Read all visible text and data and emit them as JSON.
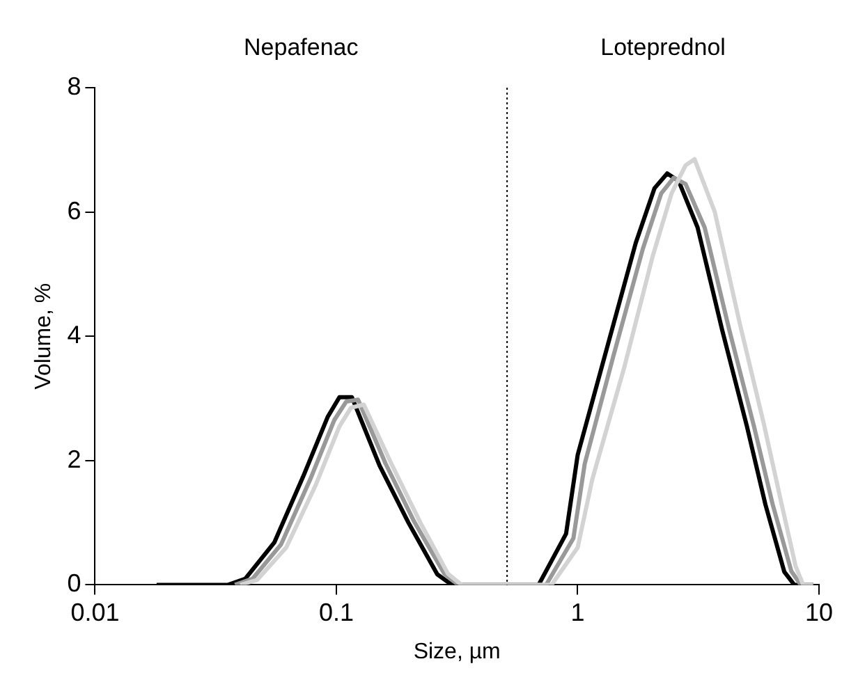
{
  "chart_data": {
    "type": "line",
    "xlabel": "Size, µm",
    "ylabel": "Volume, %",
    "log": "x",
    "grid": false,
    "legend": false,
    "marker": "none",
    "line_style": "solid",
    "xlim": [
      0.01,
      10
    ],
    "xticks": [
      0.01,
      0.1,
      1,
      10
    ],
    "ylim": [
      0,
      8
    ],
    "yticks": [
      0,
      2,
      4,
      6,
      8
    ],
    "annotations": [
      "Nepafenac",
      "Loteprednol"
    ],
    "ref_lines": [
      {
        "axis": "x",
        "value": 0.51,
        "color": "#000000",
        "line_style": "dotted"
      }
    ],
    "series": [
      {
        "color": "#d3d3d3",
        "x": [
          0.04,
          0.047,
          0.062,
          0.082,
          0.103,
          0.115,
          0.13,
          0.169,
          0.223,
          0.29,
          0.33,
          0.78,
          1.0,
          1.15,
          1.56,
          2.05,
          2.45,
          2.8,
          3.05,
          3.7,
          4.7,
          5.9,
          7.0,
          8.0,
          8.6,
          9.46
        ],
        "values": [
          0,
          0.08,
          0.6,
          1.6,
          2.55,
          2.85,
          2.9,
          1.95,
          1.0,
          0.18,
          0,
          0,
          0.6,
          1.7,
          3.5,
          5.3,
          6.3,
          6.75,
          6.85,
          6.0,
          4.2,
          2.6,
          1.3,
          0.3,
          0,
          0
        ]
      },
      {
        "color": "#999999",
        "x": [
          0.038,
          0.045,
          0.059,
          0.078,
          0.098,
          0.11,
          0.123,
          0.16,
          0.21,
          0.28,
          0.32,
          0.74,
          0.96,
          1.07,
          1.41,
          1.86,
          2.22,
          2.5,
          2.8,
          3.36,
          4.25,
          5.37,
          6.42,
          7.68,
          8.4,
          9.46
        ],
        "values": [
          0,
          0.1,
          0.65,
          1.7,
          2.65,
          2.95,
          2.98,
          1.95,
          1.02,
          0.18,
          0,
          0,
          0.75,
          1.95,
          3.7,
          5.4,
          6.3,
          6.55,
          6.45,
          5.75,
          4.1,
          2.56,
          1.3,
          0.22,
          0,
          0
        ]
      },
      {
        "color": "#000000",
        "x": [
          0.018,
          0.0356,
          0.042,
          0.0553,
          0.0728,
          0.092,
          0.103,
          0.116,
          0.151,
          0.199,
          0.262,
          0.301,
          0.689,
          0.895,
          1.0,
          1.32,
          1.74,
          2.08,
          2.35,
          2.62,
          3.14,
          3.97,
          5.02,
          6.0,
          7.18,
          7.9,
          9.46
        ],
        "values": [
          0,
          0,
          0.1,
          0.68,
          1.74,
          2.7,
          3.02,
          3.02,
          1.92,
          1.0,
          0.17,
          0,
          0,
          0.82,
          2.09,
          3.8,
          5.5,
          6.38,
          6.62,
          6.5,
          5.75,
          4.1,
          2.56,
          1.29,
          0.21,
          0,
          0
        ]
      }
    ]
  }
}
